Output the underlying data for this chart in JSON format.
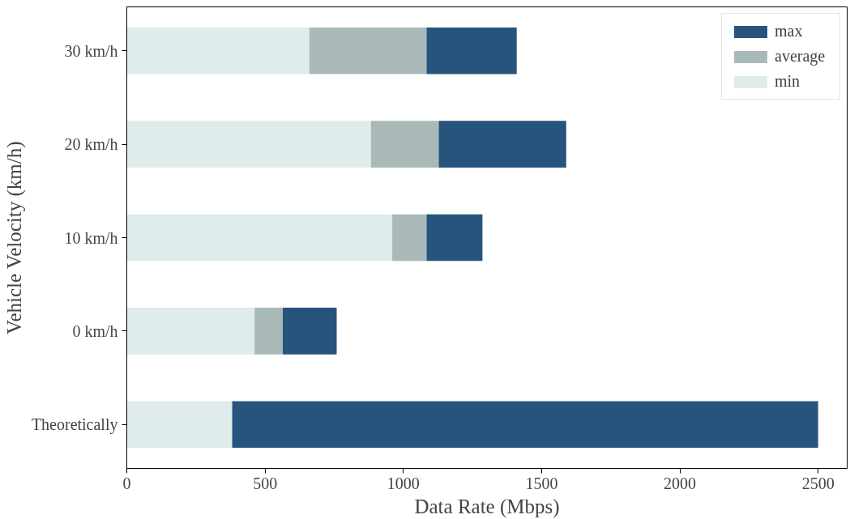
{
  "chart_data": {
    "type": "bar",
    "orientation": "horizontal",
    "stacked": true,
    "xlabel": "Data Rate (Mbps)",
    "ylabel": "Vehicle Velocity (km/h)",
    "categories": [
      "30 km/h",
      "20 km/h",
      "10 km/h",
      "0 km/h",
      "Theoretically"
    ],
    "series": [
      {
        "name": "min",
        "color": "#e0ebeb",
        "values": [
          660,
          883,
          960,
          462,
          381
        ]
      },
      {
        "name": "average",
        "color": "#a8b9b8",
        "values": [
          424,
          245,
          124,
          102,
          null
        ]
      },
      {
        "name": "max",
        "color": "#26547c",
        "values": [
          326,
          461,
          202,
          195,
          2119
        ]
      }
    ],
    "xlim": [
      0,
      2605
    ],
    "xticks": [
      0,
      500,
      1000,
      1500,
      2000,
      2500
    ],
    "grid": false,
    "legend": "top right"
  }
}
